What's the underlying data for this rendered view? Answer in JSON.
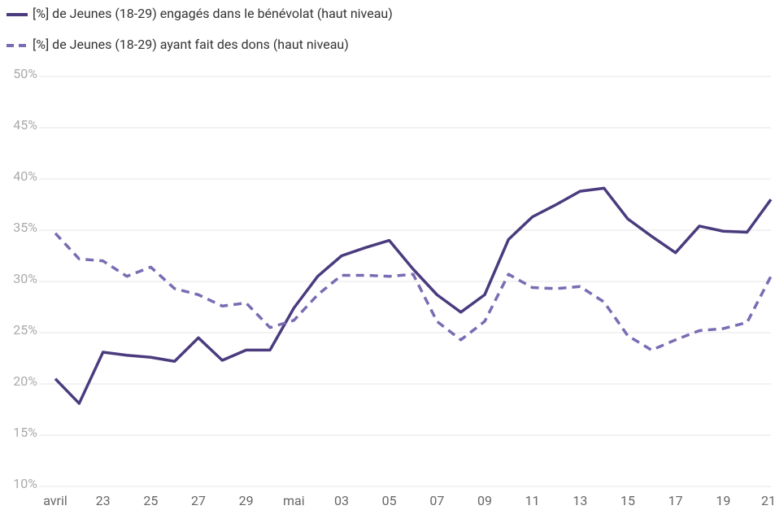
{
  "chart_data": {
    "type": "line",
    "categories": [
      "avril",
      null,
      "23",
      null,
      "25",
      null,
      "27",
      null,
      "29",
      null,
      "mai",
      null,
      "03",
      null,
      "05",
      null,
      "07",
      null,
      "09",
      null,
      "11",
      null,
      "13",
      null,
      "15",
      null,
      "17",
      null,
      "19",
      null,
      "21"
    ],
    "series": [
      {
        "name": "[%] de Jeunes (18-29) engagés dans le bénévolat (haut niveau)",
        "color": "#4a3b7e",
        "dashed": false,
        "values": [
          20.5,
          18.1,
          23.1,
          22.8,
          22.6,
          22.2,
          24.5,
          22.3,
          23.3,
          23.3,
          27.4,
          30.5,
          32.5,
          33.3,
          34.0,
          31.2,
          28.7,
          27.0,
          28.7,
          34.1,
          36.3,
          37.5,
          38.8,
          39.1,
          36.1,
          34.4,
          32.8,
          35.4,
          34.9,
          34.8,
          38.0
        ]
      },
      {
        "name": "[%] de Jeunes (18-29) ayant fait des dons (haut niveau)",
        "color": "#7b6bb3",
        "dashed": true,
        "values": [
          34.7,
          32.2,
          32.0,
          30.5,
          31.4,
          29.3,
          28.7,
          27.6,
          27.9,
          25.5,
          26.2,
          28.7,
          30.6,
          30.6,
          30.5,
          30.7,
          26.1,
          24.3,
          26.1,
          30.7,
          29.4,
          29.3,
          29.5,
          28.0,
          24.7,
          23.3,
          24.3,
          25.2,
          25.4,
          26.0,
          30.5
        ]
      }
    ],
    "ylim": [
      10,
      50
    ],
    "yticks": [
      {
        "value": 10,
        "label": "10%"
      },
      {
        "value": 15,
        "label": "15%"
      },
      {
        "value": 20,
        "label": "20%"
      },
      {
        "value": 25,
        "label": "25%"
      },
      {
        "value": 30,
        "label": "30%"
      },
      {
        "value": 35,
        "label": "35%"
      },
      {
        "value": 40,
        "label": "40%"
      },
      {
        "value": 45,
        "label": "45%"
      },
      {
        "value": 50,
        "label": "50%"
      }
    ],
    "grid": true
  }
}
